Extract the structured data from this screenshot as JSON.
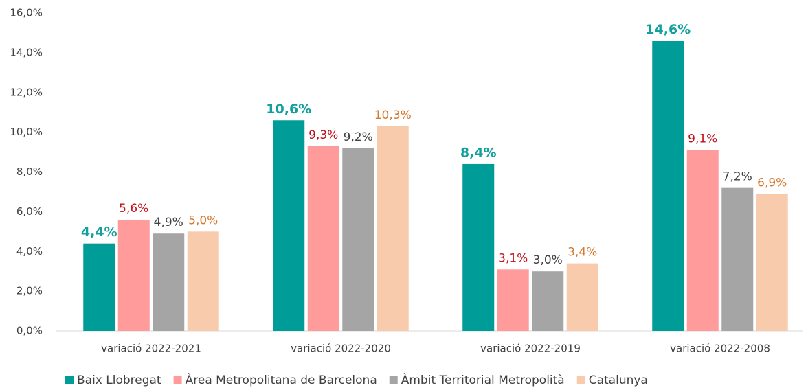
{
  "chart_data": {
    "type": "bar",
    "categories": [
      "variació 2022-2021",
      "variació 2022-2020",
      "variació 2022-2019",
      "variació 2022-2008"
    ],
    "series": [
      {
        "name": "Baix Llobregat",
        "color": "#009c98",
        "label_color": "#13a09c",
        "values": [
          4.4,
          10.6,
          8.4,
          14.6
        ],
        "value_labels": [
          "4,4%",
          "10,6%",
          "8,4%",
          "14,6%"
        ]
      },
      {
        "name": "Àrea Metropolitana de Barcelona",
        "color": "#ff9b9b",
        "label_color": "#c0121b",
        "values": [
          5.6,
          9.3,
          3.1,
          9.1
        ],
        "value_labels": [
          "5,6%",
          "9,3%",
          "3,1%",
          "9,1%"
        ]
      },
      {
        "name": "Àmbit Territorial Metropolità",
        "color": "#a5a5a5",
        "label_color": "#404040",
        "values": [
          4.9,
          9.2,
          3.0,
          7.2
        ],
        "value_labels": [
          "4,9%",
          "9,2%",
          "3,0%",
          "7,2%"
        ]
      },
      {
        "name": "Catalunya",
        "color": "#f8cbad",
        "label_color": "#d6782c",
        "values": [
          5.0,
          10.3,
          3.4,
          6.9
        ],
        "value_labels": [
          "5,0%",
          "10,3%",
          "3,4%",
          "6,9%"
        ]
      }
    ],
    "ylim": [
      0,
      16
    ],
    "yticks": [
      {
        "value": 0,
        "label": "0,0%"
      },
      {
        "value": 2,
        "label": "2,0%"
      },
      {
        "value": 4,
        "label": "4,0%"
      },
      {
        "value": 6,
        "label": "6,0%"
      },
      {
        "value": 8,
        "label": "8,0%"
      },
      {
        "value": 10,
        "label": "10,0%"
      },
      {
        "value": 12,
        "label": "12,0%"
      },
      {
        "value": 14,
        "label": "14,0%"
      },
      {
        "value": 16,
        "label": "16,0%"
      }
    ],
    "grid": false,
    "legend": "bottom"
  }
}
